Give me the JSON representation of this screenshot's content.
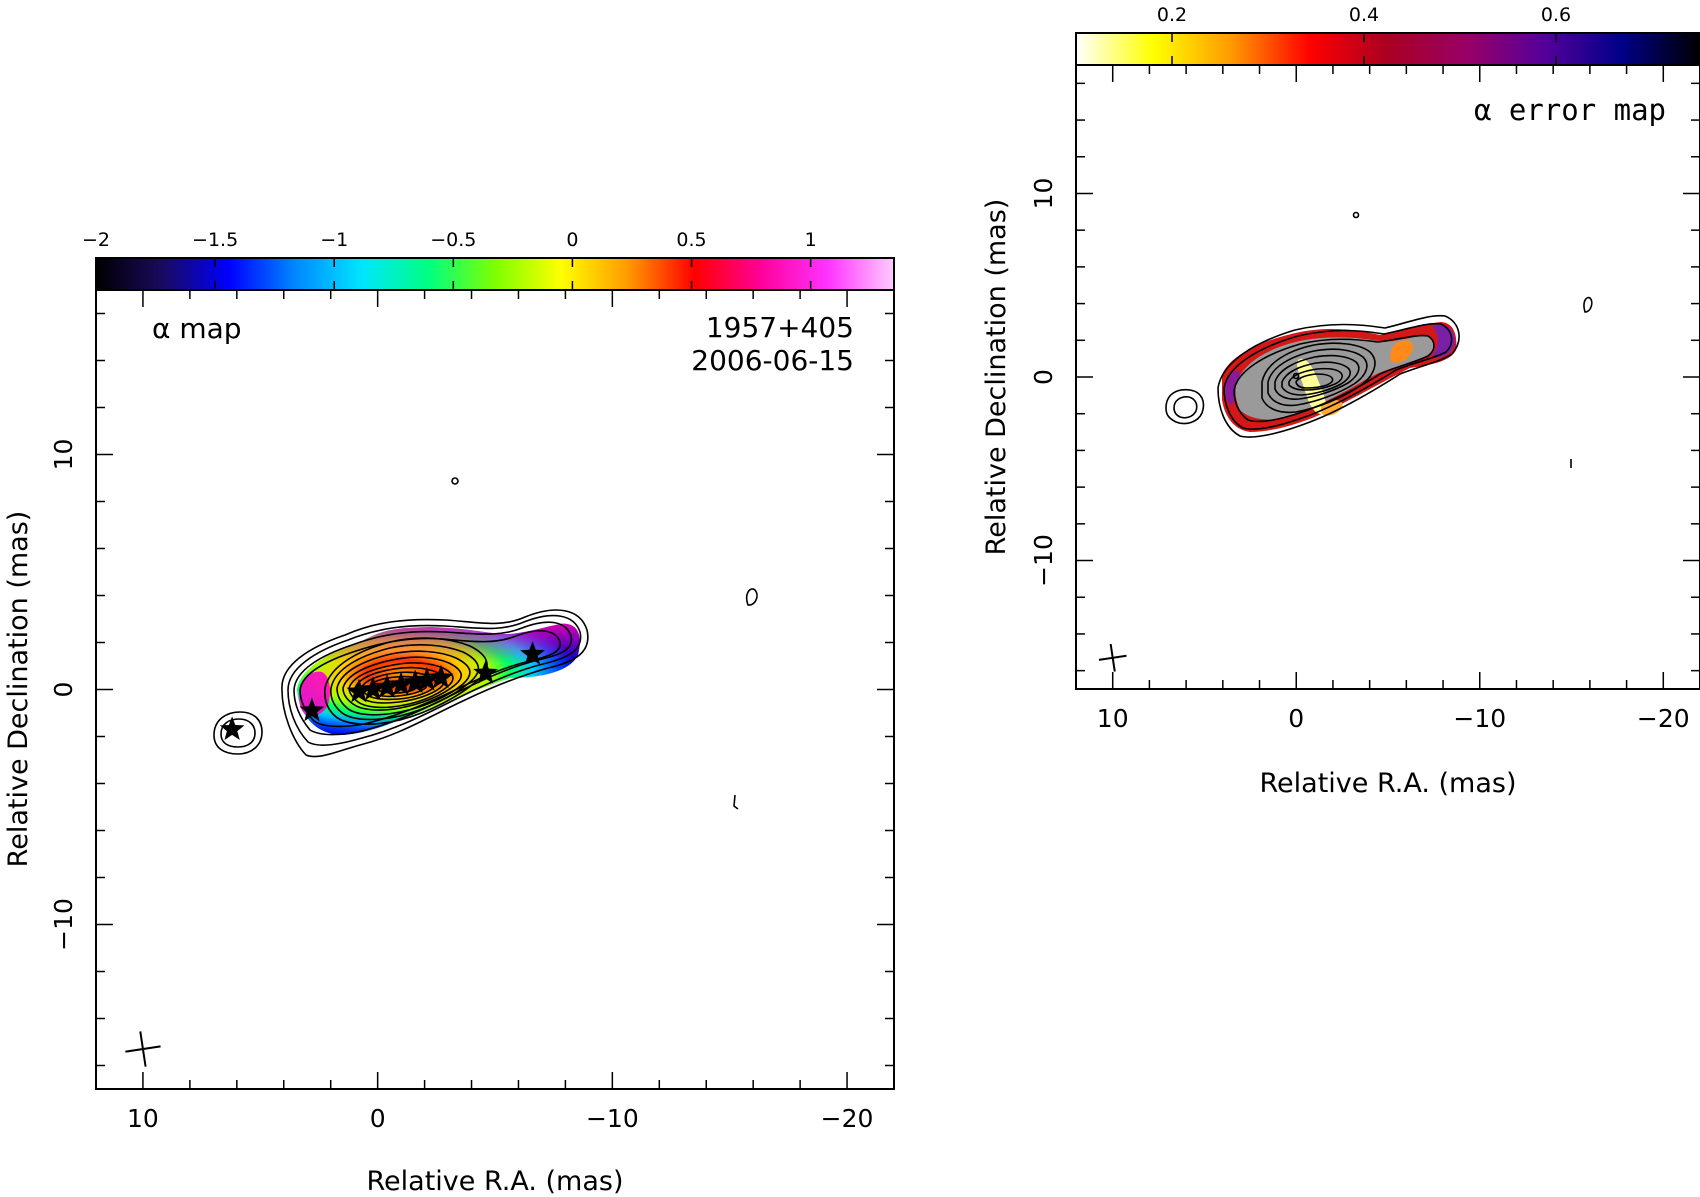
{
  "chart_data": [
    {
      "type": "heatmap",
      "name": "alpha map",
      "panel_label": "α map",
      "source": "1957+405",
      "date": "2006-06-15",
      "xlabel": "Relative R.A. (mas)",
      "ylabel": "Relative Declination (mas)",
      "xlim": [
        12,
        -22
      ],
      "ylim": [
        -17,
        17
      ],
      "x_ticks": [
        10,
        0,
        -10,
        -20
      ],
      "y_ticks": [
        10,
        0,
        -10
      ],
      "x_tick_labels": [
        "10",
        "0",
        "−10",
        "−20"
      ],
      "y_tick_labels": [
        "10",
        "0",
        "−10"
      ],
      "colorbar": {
        "range": [
          -2,
          1.35
        ],
        "ticks": [
          -2,
          -1.5,
          -1,
          -0.5,
          0,
          0.5,
          1
        ],
        "tick_labels": [
          "−2",
          "−1.5",
          "−1",
          "−0.5",
          "0",
          "0.5",
          "1"
        ],
        "colors": [
          "#000000",
          "#1a0a5e",
          "#0000ff",
          "#0088ff",
          "#00e5ff",
          "#00ff80",
          "#7dff00",
          "#ffff00",
          "#ff9900",
          "#ff0000",
          "#ff0099",
          "#ff33ff",
          "#ffccff"
        ]
      },
      "stars": [
        {
          "x": 6.2,
          "y": -1.7
        },
        {
          "x": 2.8,
          "y": -0.9
        },
        {
          "x": 0.8,
          "y": -0.1
        },
        {
          "x": 0.2,
          "y": 0.0
        },
        {
          "x": -0.4,
          "y": 0.1
        },
        {
          "x": -1.0,
          "y": 0.2
        },
        {
          "x": -1.6,
          "y": 0.3
        },
        {
          "x": -2.1,
          "y": 0.4
        },
        {
          "x": -2.7,
          "y": 0.5
        },
        {
          "x": -4.6,
          "y": 0.7
        },
        {
          "x": -6.6,
          "y": 1.5
        }
      ],
      "beam": {
        "x": 10.0,
        "y": -15.3,
        "size": 0.75
      }
    },
    {
      "type": "heatmap",
      "name": "alpha error map",
      "panel_label": "α error map",
      "xlabel": "Relative R.A. (mas)",
      "ylabel": "Relative Declination (mas)",
      "xlim": [
        12,
        -22
      ],
      "ylim": [
        -17,
        17
      ],
      "x_ticks": [
        10,
        0,
        -10,
        -20
      ],
      "y_ticks": [
        10,
        0,
        -10
      ],
      "x_tick_labels": [
        "10",
        "0",
        "−10",
        "−20"
      ],
      "y_tick_labels": [
        "10",
        "0",
        "−10"
      ],
      "colorbar": {
        "range": [
          0.1,
          0.75
        ],
        "ticks": [
          0.2,
          0.4,
          0.6
        ],
        "tick_labels": [
          "0.2",
          "0.4",
          "0.6"
        ],
        "colors": [
          "#ffffff",
          "#ffff00",
          "#ff9900",
          "#ff0000",
          "#aa0022",
          "#990066",
          "#550099",
          "#000088",
          "#000000"
        ]
      },
      "beam": {
        "x": 10.0,
        "y": -15.3,
        "size": 0.75
      }
    }
  ]
}
